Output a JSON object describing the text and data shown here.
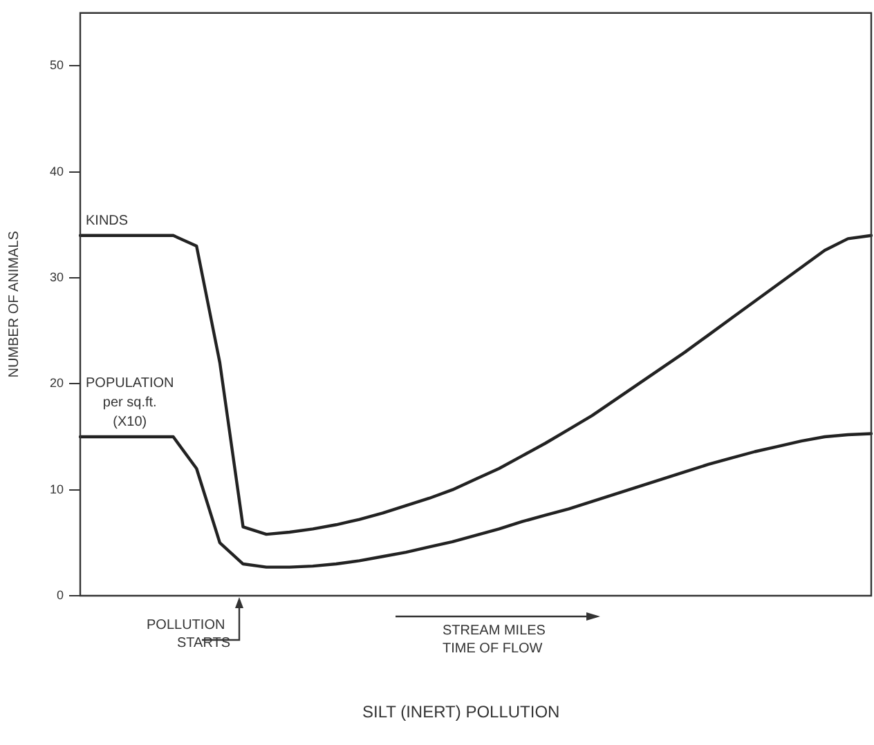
{
  "chart_data": {
    "type": "line",
    "ylabel": "NUMBER OF ANIMALS",
    "categories": [
      null,
      null,
      null,
      null,
      null,
      null,
      null,
      null,
      null,
      null,
      null,
      null,
      null,
      null,
      null,
      null,
      null,
      null,
      null,
      null,
      null,
      null,
      null,
      null,
      null,
      null,
      null,
      null,
      null,
      null,
      null,
      null,
      null,
      null,
      null
    ],
    "series": [
      {
        "name": "KINDS",
        "color": "#222222",
        "values": [
          34,
          34,
          34,
          34,
          34,
          33,
          22,
          6.5,
          5.8,
          6,
          6.3,
          6.7,
          7.2,
          7.8,
          8.5,
          9.2,
          10,
          11,
          12,
          13.2,
          14.4,
          15.7,
          17,
          18.5,
          20,
          21.5,
          23,
          24.6,
          26.2,
          27.8,
          29.4,
          31,
          32.6,
          33.7,
          34
        ]
      },
      {
        "name": "POPULATION\nper sq.ft.\n(X10)",
        "color": "#222222",
        "values": [
          15,
          15,
          15,
          15,
          15,
          12,
          5,
          3,
          2.7,
          2.7,
          2.8,
          3,
          3.3,
          3.7,
          4.1,
          4.6,
          5.1,
          5.7,
          6.3,
          7,
          7.6,
          8.2,
          8.9,
          9.6,
          10.3,
          11,
          11.7,
          12.4,
          13,
          13.6,
          14.1,
          14.6,
          15,
          15.2,
          15.3
        ]
      }
    ],
    "ylim": [
      0,
      55
    ],
    "yticks": [
      0,
      10,
      20,
      30,
      40,
      50
    ],
    "grid": false,
    "legend": false,
    "marker": "none",
    "line_style": "solid",
    "annotations": [
      "POLLUTION\nSTARTS",
      "STREAM MILES\nTIME OF FLOW",
      "SILT (INERT) POLLUTION"
    ]
  }
}
